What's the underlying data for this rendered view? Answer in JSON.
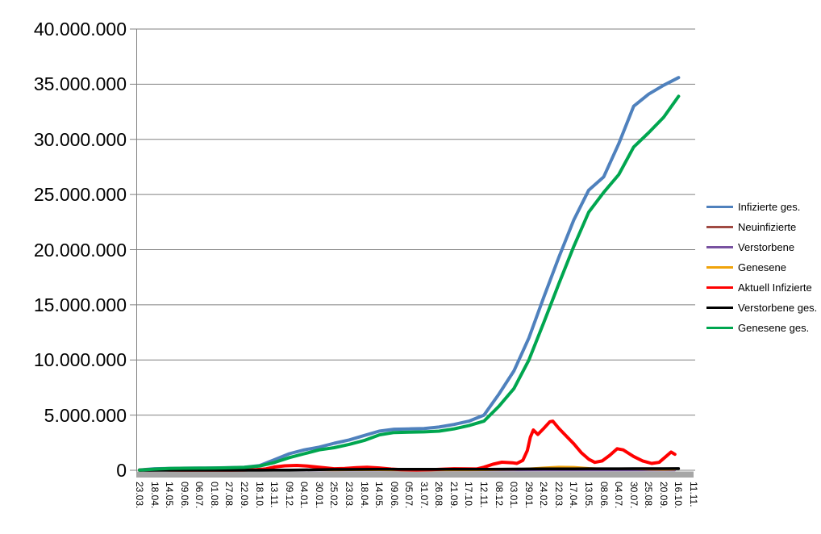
{
  "chart_data": {
    "type": "line",
    "title": "",
    "xlabel": "",
    "ylabel": "",
    "grid": true,
    "legend_position": "right",
    "gridline_color": "#808080",
    "axis_bar_color": "#A6A6A6",
    "y_axis": {
      "min": 0,
      "max": 40000000,
      "step": 5000000,
      "tick_values": [
        40000000,
        35000000,
        30000000,
        25000000,
        20000000,
        15000000,
        10000000,
        5000000,
        0
      ],
      "tick_labels": [
        "40.000.000",
        "35.000.000",
        "30.000.000",
        "25.000.000",
        "20.000.000",
        "15.000.000",
        "10.000.000",
        "5.000.000",
        "0"
      ]
    },
    "categories": [
      "23.03.",
      "18.04.",
      "14.05.",
      "09.06.",
      "06.07.",
      "01.08.",
      "27.08.",
      "22.09.",
      "18.10.",
      "13.11.",
      "09.12.",
      "04.01.",
      "30.01.",
      "25.02.",
      "23.03.",
      "18.04.",
      "14.05.",
      "09.06.",
      "05.07.",
      "31.07.",
      "26.08.",
      "21.09.",
      "17.10.",
      "12.11.",
      "08.12.",
      "03.01.",
      "29.01.",
      "24.02.",
      "22.03.",
      "17.04.",
      "13.05.",
      "08.06.",
      "04.07.",
      "30.07.",
      "25.08.",
      "20.09.",
      "16.10.",
      "11.11."
    ],
    "series": [
      {
        "name": "Infizierte ges.",
        "color": "#4F81BD",
        "width": 4,
        "values": [
          30000,
          140000,
          170000,
          190000,
          200000,
          210000,
          240000,
          280000,
          420000,
          950000,
          1500000,
          1850000,
          2100000,
          2450000,
          2750000,
          3150000,
          3550000,
          3720000,
          3750000,
          3780000,
          3920000,
          4150000,
          4450000,
          5000000,
          6900000,
          9000000,
          12000000,
          15700000,
          19300000,
          22700000,
          25400000,
          26600000,
          29600000,
          33000000,
          34100000,
          34900000,
          35600000
        ]
      },
      {
        "name": "Neuinfizierte",
        "color": "#A04A42",
        "width": 2.5,
        "points": [
          [
            0,
            4000
          ],
          [
            5,
            4000
          ],
          [
            8,
            8000
          ],
          [
            9,
            18000
          ],
          [
            10,
            25000
          ],
          [
            11,
            22000
          ],
          [
            12,
            12000
          ],
          [
            13,
            8000
          ],
          [
            14,
            14000
          ],
          [
            15,
            19000
          ],
          [
            16,
            12000
          ],
          [
            17,
            5000
          ],
          [
            18,
            2000
          ],
          [
            19,
            3000
          ],
          [
            20,
            8000
          ],
          [
            21,
            11000
          ],
          [
            22,
            12000
          ],
          [
            23,
            30000
          ],
          [
            24,
            50000
          ],
          [
            25,
            45000
          ],
          [
            26,
            120000
          ],
          [
            27,
            200000
          ],
          [
            27.7,
            250000
          ],
          [
            28,
            220000
          ],
          [
            29,
            140000
          ],
          [
            30,
            60000
          ],
          [
            31,
            70000
          ],
          [
            32,
            100000
          ],
          [
            33,
            70000
          ],
          [
            34,
            40000
          ],
          [
            35,
            50000
          ],
          [
            35.75,
            60000
          ]
        ]
      },
      {
        "name": "Verstorbene",
        "color": "#7852A0",
        "width": 2.5,
        "points": [
          [
            0,
            500
          ],
          [
            10,
            1000
          ],
          [
            12,
            2000
          ],
          [
            14,
            2000
          ],
          [
            20,
            1000
          ],
          [
            24,
            1000
          ],
          [
            26,
            2000
          ],
          [
            28,
            2000
          ],
          [
            30,
            1000
          ],
          [
            33,
            1000
          ],
          [
            35.75,
            1000
          ]
        ]
      },
      {
        "name": "Genesene",
        "color": "#F0A30A",
        "width": 2.5,
        "points": [
          [
            0,
            3000
          ],
          [
            8,
            6000
          ],
          [
            9,
            12000
          ],
          [
            10,
            20000
          ],
          [
            11,
            24000
          ],
          [
            12,
            18000
          ],
          [
            13,
            10000
          ],
          [
            14,
            13000
          ],
          [
            15,
            18000
          ],
          [
            16,
            14000
          ],
          [
            17,
            6000
          ],
          [
            18,
            3000
          ],
          [
            19,
            3000
          ],
          [
            20,
            6000
          ],
          [
            21,
            10000
          ],
          [
            22,
            10000
          ],
          [
            23,
            20000
          ],
          [
            24,
            45000
          ],
          [
            25,
            70000
          ],
          [
            26,
            150000
          ],
          [
            27,
            250000
          ],
          [
            28,
            320000
          ],
          [
            29,
            300000
          ],
          [
            30,
            200000
          ],
          [
            31,
            130000
          ],
          [
            32,
            150000
          ],
          [
            33,
            120000
          ],
          [
            34,
            70000
          ],
          [
            35,
            60000
          ],
          [
            35.75,
            70000
          ]
        ]
      },
      {
        "name": "Aktuell Infizierte",
        "color": "#FF0000",
        "width": 4,
        "points": [
          [
            0,
            20000
          ],
          [
            0.6,
            65000
          ],
          [
            1.3,
            50000
          ],
          [
            2,
            28000
          ],
          [
            3,
            17000
          ],
          [
            4,
            13000
          ],
          [
            5,
            15000
          ],
          [
            6,
            20000
          ],
          [
            7,
            28000
          ],
          [
            7.8,
            50000
          ],
          [
            8.4,
            120000
          ],
          [
            9,
            300000
          ],
          [
            9.7,
            400000
          ],
          [
            10.5,
            440000
          ],
          [
            11.2,
            380000
          ],
          [
            12,
            270000
          ],
          [
            13,
            140000
          ],
          [
            13.7,
            170000
          ],
          [
            14.5,
            240000
          ],
          [
            15.2,
            280000
          ],
          [
            16,
            210000
          ],
          [
            16.8,
            110000
          ],
          [
            17.5,
            50000
          ],
          [
            18.5,
            30000
          ],
          [
            19.5,
            50000
          ],
          [
            20.3,
            100000
          ],
          [
            21,
            140000
          ],
          [
            21.8,
            130000
          ],
          [
            22.5,
            120000
          ],
          [
            23,
            280000
          ],
          [
            23.6,
            550000
          ],
          [
            24.2,
            730000
          ],
          [
            24.9,
            680000
          ],
          [
            25.2,
            620000
          ],
          [
            25.6,
            900000
          ],
          [
            25.9,
            1800000
          ],
          [
            26.1,
            3000000
          ],
          [
            26.3,
            3650000
          ],
          [
            26.6,
            3250000
          ],
          [
            27,
            3800000
          ],
          [
            27.4,
            4400000
          ],
          [
            27.6,
            4450000
          ],
          [
            28,
            3800000
          ],
          [
            28.5,
            3100000
          ],
          [
            29,
            2400000
          ],
          [
            29.5,
            1600000
          ],
          [
            30,
            1000000
          ],
          [
            30.4,
            720000
          ],
          [
            30.9,
            850000
          ],
          [
            31.4,
            1350000
          ],
          [
            31.9,
            1950000
          ],
          [
            32.3,
            1850000
          ],
          [
            33,
            1250000
          ],
          [
            33.6,
            850000
          ],
          [
            34.2,
            620000
          ],
          [
            34.7,
            720000
          ],
          [
            35.2,
            1300000
          ],
          [
            35.5,
            1650000
          ],
          [
            35.75,
            1450000
          ]
        ]
      },
      {
        "name": "Verstorbene ges.",
        "color": "#000000",
        "width": 3.5,
        "values": [
          1000,
          6000,
          8000,
          9000,
          9000,
          9000,
          9000,
          10000,
          10000,
          15000,
          22000,
          36000,
          57000,
          70000,
          76000,
          81000,
          86000,
          89000,
          91000,
          92000,
          92000,
          93000,
          95000,
          98000,
          105000,
          112000,
          118000,
          122000,
          127000,
          132000,
          136000,
          139000,
          141000,
          144000,
          146000,
          148000,
          150000
        ]
      },
      {
        "name": "Genesene ges.",
        "color": "#00A64F",
        "width": 4,
        "values": [
          20000,
          100000,
          160000,
          180000,
          190000,
          200000,
          230000,
          260000,
          380000,
          700000,
          1150000,
          1500000,
          1850000,
          2050000,
          2350000,
          2700000,
          3200000,
          3420000,
          3450000,
          3480000,
          3550000,
          3750000,
          4050000,
          4450000,
          5800000,
          7400000,
          10000000,
          13400000,
          16900000,
          20300000,
          23400000,
          25200000,
          26800000,
          29300000,
          30600000,
          32000000,
          33900000
        ]
      }
    ]
  }
}
